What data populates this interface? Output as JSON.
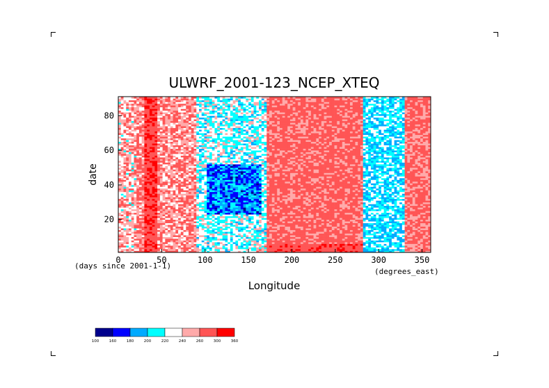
{
  "chart_data": {
    "type": "heatmap",
    "title": "ULWRF_2001-123_NCEP_XTEQ",
    "xlabel": "Longitude",
    "ylabel": "date",
    "x_units_note": "(degrees_east)",
    "y_units_note": "(days since 2001-1-1)",
    "xlim": [
      0,
      360
    ],
    "ylim": [
      1,
      91
    ],
    "x_ticks": [
      0,
      50,
      100,
      150,
      200,
      250,
      300,
      350
    ],
    "y_ticks": [
      20,
      40,
      60,
      80
    ],
    "colorbar": {
      "levels": [
        100,
        160,
        180,
        200,
        220,
        240,
        260,
        300,
        360
      ],
      "colors": [
        "#00008c",
        "#0000ff",
        "#00aaff",
        "#00ffff",
        "#ffffff",
        "#ffaaaa",
        "#ff5555",
        "#ff0000"
      ]
    },
    "longitude_bands": [
      {
        "lon_range": [
          0,
          20
        ],
        "character": "mixed red with blue/cyan patches"
      },
      {
        "lon_range": [
          30,
          45
        ],
        "character": "strong red (high ULWRF)"
      },
      {
        "lon_range": [
          45,
          90
        ],
        "character": "mostly red with scattered blue"
      },
      {
        "lon_range": [
          90,
          170
        ],
        "character": "dominant blue/cyan convective region, deepest blue near days 25-50"
      },
      {
        "lon_range": [
          170,
          280
        ],
        "character": "uniform red/pink (high ULWRF)"
      },
      {
        "lon_range": [
          280,
          330
        ],
        "character": "cyan/blue convective band"
      },
      {
        "lon_range": [
          330,
          360
        ],
        "character": "red/pink"
      }
    ]
  }
}
